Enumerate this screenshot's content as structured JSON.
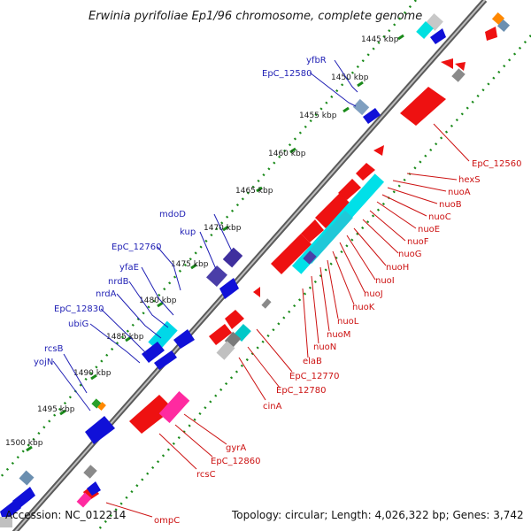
{
  "title": "Erwinia pyrifoliae Ep1/96 chromosome, complete genome",
  "footer": {
    "accession": "Accession: NC_012214",
    "summary": "Topology: circular; Length: 4,026,322 bp; Genes: 3,742"
  },
  "ticks": [
    "1445 kbp",
    "1450 kbp",
    "1455 kbp",
    "1460 kbp",
    "1465 kbp",
    "1470 kbp",
    "1475 kbp",
    "1480 kbp",
    "1485 kbp",
    "1490 kbp",
    "1495 kbp",
    "1500 kbp"
  ],
  "labels_left": [
    "yfbR",
    "EpC_12580",
    "mdoD",
    "kup",
    "EpC_12760",
    "yfaE",
    "nrdB",
    "nrdA",
    "EpC_12830",
    "ubiG",
    "rcsB",
    "yojN"
  ],
  "labels_right": [
    "EpC_12560",
    "hexS",
    "nuoA",
    "nuoB",
    "nuoC",
    "nuoE",
    "nuoF",
    "nuoG",
    "nuoH",
    "nuoI",
    "nuoJ",
    "nuoK",
    "nuoL",
    "nuoM",
    "nuoN",
    "elaB",
    "EpC_12770",
    "EpC_12780",
    "cinA",
    "gyrA",
    "EpC_12860",
    "rcsC",
    "ompC"
  ],
  "colors": {
    "backbone": "#707070",
    "forward_cds": "#1010d8",
    "reverse_cds": "#ee1111",
    "rrna_like": "#00e0e0",
    "grey_feature": "#9a9a9a",
    "purple_feature": "#4a3ea8",
    "pink_feature": "#ff2aa0",
    "tick_dots": "#1a8a1a",
    "left_label": "#1f1fb4",
    "right_label": "#cc1111"
  }
}
